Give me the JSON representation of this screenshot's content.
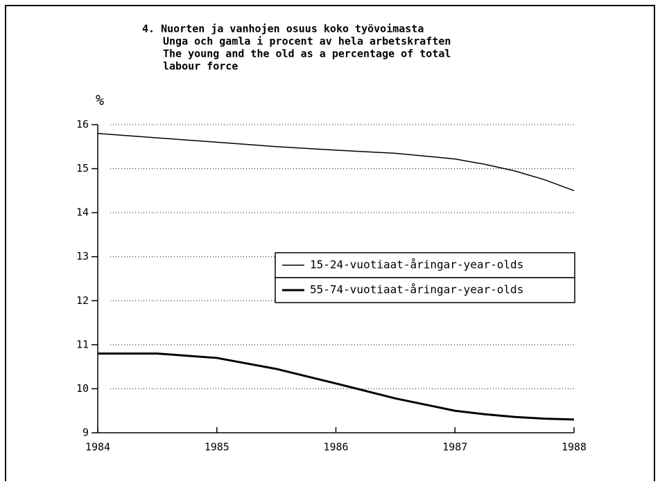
{
  "chart_data": {
    "type": "line",
    "title_lines": [
      "4. Nuorten ja vanhojen osuus koko työvoimasta",
      "Unga och gamla i procent av hela arbetskraften",
      "The young and the old as a percentage of total",
      "labour force"
    ],
    "y_label": "%",
    "x": [
      1984,
      1984.5,
      1985,
      1985.5,
      1986,
      1986.5,
      1987,
      1987.25,
      1987.5,
      1987.75,
      1988
    ],
    "series": [
      {
        "name": "15-24-vuotiaat-åringar-year-olds",
        "color": "#000000",
        "line_width": 1.5,
        "values": [
          15.8,
          15.7,
          15.6,
          15.5,
          15.42,
          15.35,
          15.22,
          15.1,
          14.95,
          14.75,
          14.5
        ]
      },
      {
        "name": "55-74-vuotiaat-åringar-year-olds",
        "color": "#000000",
        "line_width": 3,
        "values": [
          10.8,
          10.8,
          10.7,
          10.45,
          10.12,
          9.78,
          9.5,
          9.42,
          9.36,
          9.32,
          9.3
        ]
      }
    ],
    "xlim": [
      1984,
      1988
    ],
    "xticks": [
      1984,
      1985,
      1986,
      1987,
      1988
    ],
    "ylim": [
      9,
      16
    ],
    "yticks": [
      9,
      10,
      11,
      12,
      13,
      14,
      15,
      16
    ],
    "grid": true,
    "legend": "center-right"
  }
}
